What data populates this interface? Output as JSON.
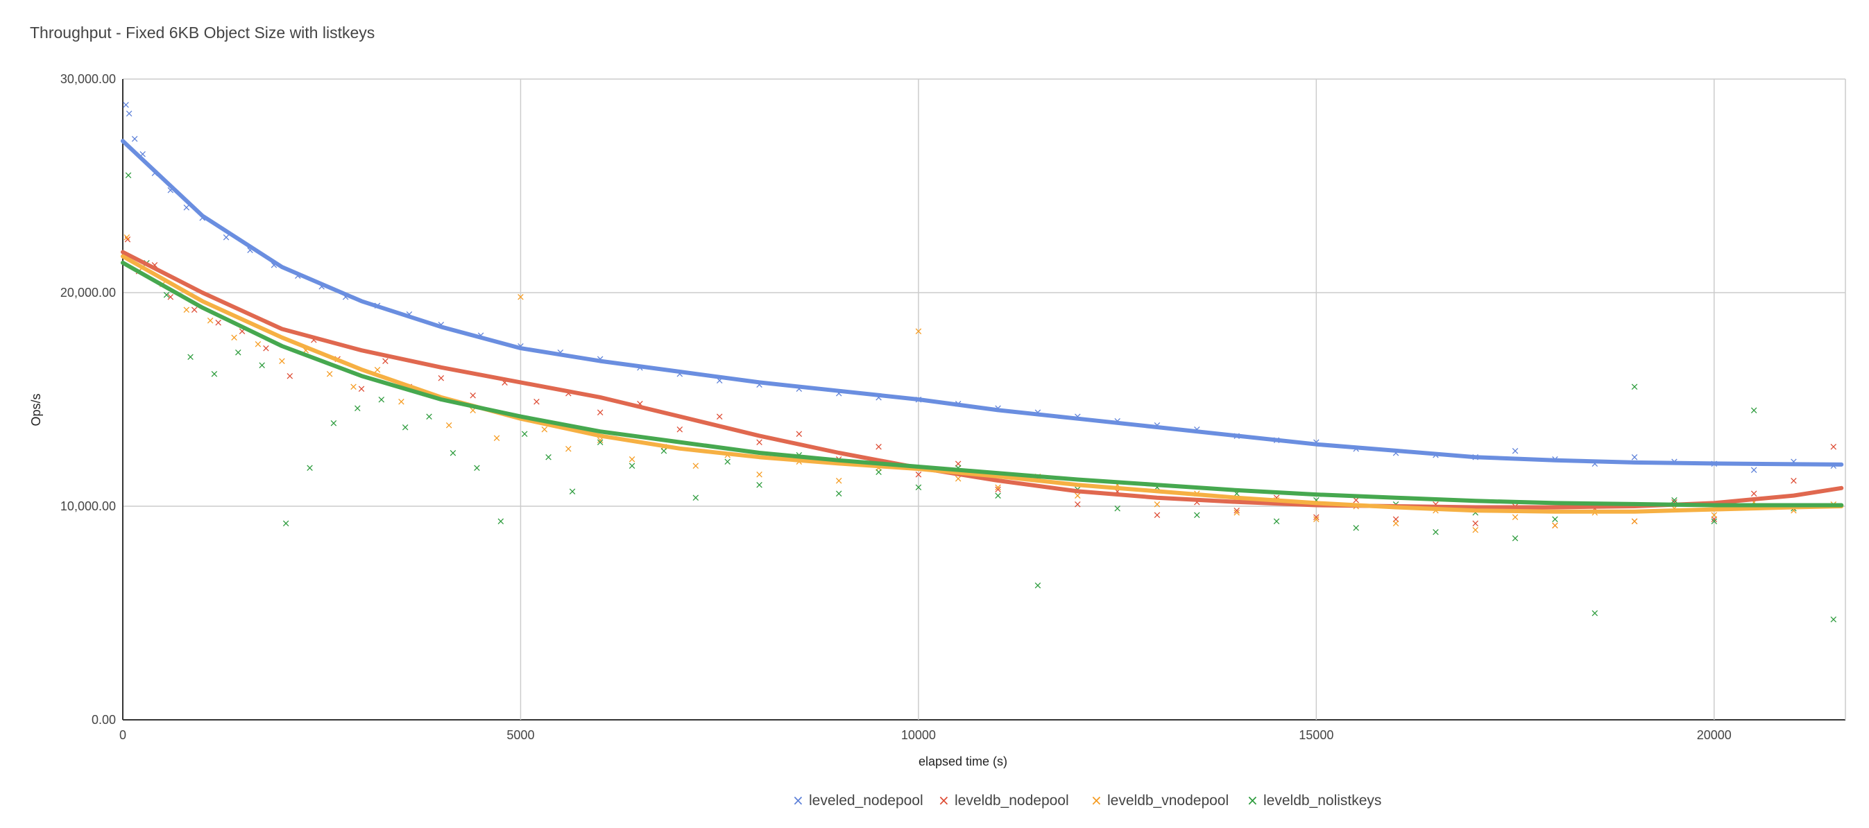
{
  "chart_data": {
    "type": "scatter",
    "title": "Throughput - Fixed 6KB Object Size with listkeys",
    "xlabel": "elapsed time (s)",
    "ylabel": "Ops/s",
    "xlim": [
      0,
      21650
    ],
    "ylim": [
      0,
      30000
    ],
    "x_ticks": [
      0,
      5000,
      10000,
      15000,
      20000
    ],
    "x_tick_labels": [
      "0",
      "5000",
      "10000",
      "15000",
      "20000"
    ],
    "y_ticks": [
      0,
      10000,
      20000,
      30000
    ],
    "y_tick_labels": [
      "0.00",
      "10,000.00",
      "20,000.00",
      "30,000.00"
    ],
    "grid": true,
    "legend_position": "bottom",
    "marker": "×",
    "series": [
      {
        "name": "leveled_nodepool",
        "color": "#5b7fd8",
        "trend_color": "#6a8ee0",
        "trendline": [
          [
            0,
            27100
          ],
          [
            1000,
            23600
          ],
          [
            2000,
            21200
          ],
          [
            3000,
            19600
          ],
          [
            4000,
            18400
          ],
          [
            5000,
            17400
          ],
          [
            6000,
            16800
          ],
          [
            7000,
            16300
          ],
          [
            8000,
            15800
          ],
          [
            9000,
            15400
          ],
          [
            10000,
            15000
          ],
          [
            11000,
            14500
          ],
          [
            12000,
            14100
          ],
          [
            13000,
            13700
          ],
          [
            14000,
            13300
          ],
          [
            15000,
            12900
          ],
          [
            16000,
            12600
          ],
          [
            17000,
            12300
          ],
          [
            18000,
            12150
          ],
          [
            19000,
            12050
          ],
          [
            20000,
            12000
          ],
          [
            21600,
            11950
          ]
        ],
        "points": [
          [
            40,
            28800
          ],
          [
            80,
            28400
          ],
          [
            150,
            27200
          ],
          [
            250,
            26500
          ],
          [
            400,
            25600
          ],
          [
            600,
            24800
          ],
          [
            800,
            24000
          ],
          [
            1000,
            23500
          ],
          [
            1300,
            22600
          ],
          [
            1600,
            22000
          ],
          [
            1900,
            21300
          ],
          [
            2200,
            20800
          ],
          [
            2500,
            20300
          ],
          [
            2800,
            19800
          ],
          [
            3200,
            19400
          ],
          [
            3600,
            19000
          ],
          [
            4000,
            18500
          ],
          [
            4500,
            18000
          ],
          [
            5000,
            17500
          ],
          [
            5500,
            17200
          ],
          [
            6000,
            16900
          ],
          [
            6500,
            16500
          ],
          [
            7000,
            16200
          ],
          [
            7500,
            15900
          ],
          [
            8000,
            15700
          ],
          [
            8500,
            15500
          ],
          [
            9000,
            15300
          ],
          [
            9500,
            15100
          ],
          [
            10000,
            15000
          ],
          [
            10500,
            14800
          ],
          [
            11000,
            14600
          ],
          [
            11500,
            14400
          ],
          [
            12000,
            14200
          ],
          [
            12500,
            14000
          ],
          [
            13000,
            13800
          ],
          [
            13500,
            13600
          ],
          [
            14000,
            13300
          ],
          [
            14500,
            13100
          ],
          [
            15000,
            13000
          ],
          [
            15500,
            12700
          ],
          [
            16000,
            12500
          ],
          [
            16500,
            12400
          ],
          [
            17000,
            12300
          ],
          [
            17500,
            12600
          ],
          [
            18000,
            12200
          ],
          [
            18500,
            12000
          ],
          [
            19000,
            12300
          ],
          [
            19500,
            12100
          ],
          [
            20000,
            12000
          ],
          [
            20500,
            11700
          ],
          [
            21000,
            12100
          ],
          [
            21500,
            11900
          ]
        ]
      },
      {
        "name": "leveldb_nodepool",
        "color": "#dd4a32",
        "trend_color": "#e0684f",
        "trendline": [
          [
            0,
            21900
          ],
          [
            1000,
            20000
          ],
          [
            2000,
            18300
          ],
          [
            3000,
            17300
          ],
          [
            4000,
            16500
          ],
          [
            5000,
            15800
          ],
          [
            6000,
            15100
          ],
          [
            7000,
            14200
          ],
          [
            8000,
            13300
          ],
          [
            9000,
            12500
          ],
          [
            10000,
            11800
          ],
          [
            11000,
            11200
          ],
          [
            12000,
            10700
          ],
          [
            13000,
            10400
          ],
          [
            14000,
            10200
          ],
          [
            15000,
            10050
          ],
          [
            16000,
            10000
          ],
          [
            17000,
            9950
          ],
          [
            18000,
            9950
          ],
          [
            19000,
            10000
          ],
          [
            20000,
            10150
          ],
          [
            21000,
            10500
          ],
          [
            21600,
            10850
          ]
        ],
        "points": [
          [
            60,
            22500
          ],
          [
            200,
            21000
          ],
          [
            400,
            21300
          ],
          [
            600,
            19800
          ],
          [
            900,
            19200
          ],
          [
            1200,
            18600
          ],
          [
            1500,
            18200
          ],
          [
            1800,
            17400
          ],
          [
            2100,
            16100
          ],
          [
            2400,
            17800
          ],
          [
            2700,
            16900
          ],
          [
            3000,
            15500
          ],
          [
            3300,
            16800
          ],
          [
            3600,
            15600
          ],
          [
            4000,
            16000
          ],
          [
            4400,
            15200
          ],
          [
            4800,
            15800
          ],
          [
            5200,
            14900
          ],
          [
            5600,
            15300
          ],
          [
            6000,
            14400
          ],
          [
            6500,
            14800
          ],
          [
            7000,
            13600
          ],
          [
            7500,
            14200
          ],
          [
            8000,
            13000
          ],
          [
            8500,
            13400
          ],
          [
            9000,
            12200
          ],
          [
            9500,
            12800
          ],
          [
            10000,
            11500
          ],
          [
            10500,
            12000
          ],
          [
            11000,
            10800
          ],
          [
            11500,
            11300
          ],
          [
            12000,
            10100
          ],
          [
            12500,
            10700
          ],
          [
            13000,
            9600
          ],
          [
            13500,
            10200
          ],
          [
            14000,
            9800
          ],
          [
            14500,
            10400
          ],
          [
            15000,
            9500
          ],
          [
            15500,
            10300
          ],
          [
            16000,
            9400
          ],
          [
            16500,
            10100
          ],
          [
            17000,
            9200
          ],
          [
            17500,
            10000
          ],
          [
            18000,
            9100
          ],
          [
            18500,
            9900
          ],
          [
            19000,
            9300
          ],
          [
            19500,
            10200
          ],
          [
            20000,
            9400
          ],
          [
            20500,
            10600
          ],
          [
            21000,
            11200
          ],
          [
            21500,
            12800
          ]
        ]
      },
      {
        "name": "leveldb_vnodepool",
        "color": "#f59a1e",
        "trend_color": "#f6b043",
        "trendline": [
          [
            0,
            21700
          ],
          [
            1000,
            19600
          ],
          [
            2000,
            17900
          ],
          [
            3000,
            16400
          ],
          [
            4000,
            15100
          ],
          [
            5000,
            14100
          ],
          [
            6000,
            13300
          ],
          [
            7000,
            12700
          ],
          [
            8000,
            12300
          ],
          [
            9000,
            12000
          ],
          [
            10000,
            11750
          ],
          [
            11000,
            11400
          ],
          [
            12000,
            11000
          ],
          [
            13000,
            10700
          ],
          [
            14000,
            10400
          ],
          [
            15000,
            10150
          ],
          [
            16000,
            9950
          ],
          [
            17000,
            9800
          ],
          [
            18000,
            9750
          ],
          [
            19000,
            9750
          ],
          [
            20000,
            9850
          ],
          [
            21000,
            9950
          ],
          [
            21600,
            10000
          ]
        ],
        "points": [
          [
            50,
            22600
          ],
          [
            250,
            21200
          ],
          [
            500,
            20400
          ],
          [
            800,
            19200
          ],
          [
            1100,
            18700
          ],
          [
            1400,
            17900
          ],
          [
            1700,
            17600
          ],
          [
            2000,
            16800
          ],
          [
            2300,
            17300
          ],
          [
            2600,
            16200
          ],
          [
            2900,
            15600
          ],
          [
            3200,
            16400
          ],
          [
            3500,
            14900
          ],
          [
            3800,
            15300
          ],
          [
            4100,
            13800
          ],
          [
            4400,
            14500
          ],
          [
            4700,
            13200
          ],
          [
            5000,
            19800
          ],
          [
            5300,
            13600
          ],
          [
            5600,
            12700
          ],
          [
            6000,
            13100
          ],
          [
            6400,
            12200
          ],
          [
            6800,
            12800
          ],
          [
            7200,
            11900
          ],
          [
            7600,
            12400
          ],
          [
            8000,
            11500
          ],
          [
            8500,
            12100
          ],
          [
            9000,
            11200
          ],
          [
            9500,
            11800
          ],
          [
            10000,
            18200
          ],
          [
            10500,
            11300
          ],
          [
            11000,
            10900
          ],
          [
            11500,
            11400
          ],
          [
            12000,
            10500
          ],
          [
            12500,
            11000
          ],
          [
            13000,
            10100
          ],
          [
            13500,
            10600
          ],
          [
            14000,
            9700
          ],
          [
            14500,
            10300
          ],
          [
            15000,
            9400
          ],
          [
            15500,
            10000
          ],
          [
            16000,
            9200
          ],
          [
            16500,
            9800
          ],
          [
            17000,
            8900
          ],
          [
            17500,
            9500
          ],
          [
            18000,
            9100
          ],
          [
            18500,
            9700
          ],
          [
            19000,
            9300
          ],
          [
            19500,
            9900
          ],
          [
            20000,
            9600
          ],
          [
            20500,
            10200
          ],
          [
            21000,
            9800
          ],
          [
            21500,
            10100
          ]
        ]
      },
      {
        "name": "leveldb_nolistkeys",
        "color": "#2a9a3a",
        "trend_color": "#46a84f",
        "trendline": [
          [
            0,
            21400
          ],
          [
            1000,
            19300
          ],
          [
            2000,
            17500
          ],
          [
            3000,
            16100
          ],
          [
            4000,
            15000
          ],
          [
            5000,
            14200
          ],
          [
            6000,
            13500
          ],
          [
            7000,
            13000
          ],
          [
            8000,
            12500
          ],
          [
            9000,
            12150
          ],
          [
            10000,
            11850
          ],
          [
            11000,
            11550
          ],
          [
            12000,
            11250
          ],
          [
            13000,
            11000
          ],
          [
            14000,
            10750
          ],
          [
            15000,
            10550
          ],
          [
            16000,
            10400
          ],
          [
            17000,
            10250
          ],
          [
            18000,
            10150
          ],
          [
            19000,
            10100
          ],
          [
            20000,
            10050
          ],
          [
            21000,
            10050
          ],
          [
            21600,
            10050
          ]
        ],
        "points": [
          [
            70,
            25500
          ],
          [
            300,
            21400
          ],
          [
            550,
            19900
          ],
          [
            850,
            17000
          ],
          [
            1150,
            16200
          ],
          [
            1450,
            17200
          ],
          [
            1750,
            16600
          ],
          [
            2050,
            9200
          ],
          [
            2350,
            11800
          ],
          [
            2650,
            13900
          ],
          [
            2950,
            14600
          ],
          [
            3250,
            15000
          ],
          [
            3550,
            13700
          ],
          [
            3850,
            14200
          ],
          [
            4150,
            12500
          ],
          [
            4450,
            11800
          ],
          [
            4750,
            9300
          ],
          [
            5050,
            13400
          ],
          [
            5350,
            12300
          ],
          [
            5650,
            10700
          ],
          [
            6000,
            13000
          ],
          [
            6400,
            11900
          ],
          [
            6800,
            12600
          ],
          [
            7200,
            10400
          ],
          [
            7600,
            12100
          ],
          [
            8000,
            11000
          ],
          [
            8500,
            12400
          ],
          [
            9000,
            10600
          ],
          [
            9500,
            11600
          ],
          [
            10000,
            10900
          ],
          [
            10500,
            11800
          ],
          [
            11000,
            10500
          ],
          [
            11500,
            6300
          ],
          [
            12000,
            10800
          ],
          [
            12500,
            9900
          ],
          [
            13000,
            10900
          ],
          [
            13500,
            9600
          ],
          [
            14000,
            10600
          ],
          [
            14500,
            9300
          ],
          [
            15000,
            10300
          ],
          [
            15500,
            9000
          ],
          [
            16000,
            10100
          ],
          [
            16500,
            8800
          ],
          [
            17000,
            9700
          ],
          [
            17500,
            8500
          ],
          [
            18000,
            9400
          ],
          [
            18500,
            5000
          ],
          [
            19000,
            15600
          ],
          [
            19500,
            10300
          ],
          [
            20000,
            9300
          ],
          [
            20500,
            14500
          ],
          [
            21000,
            9900
          ],
          [
            21500,
            4700
          ]
        ]
      }
    ]
  }
}
